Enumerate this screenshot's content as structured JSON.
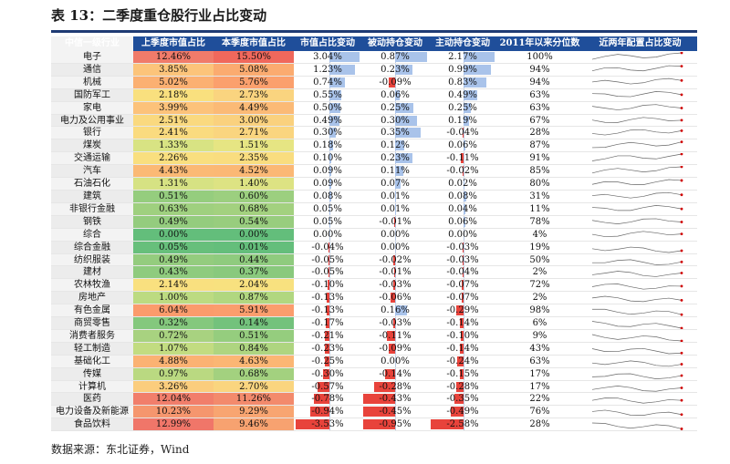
{
  "title": "表 13：二季度重仓股行业占比变动",
  "source": "数据来源：东北证券，Wind",
  "headers": [
    "中信一级行业",
    "上季度市值占比",
    "本季度市值占比",
    "市值占比变动",
    "被动持仓变动",
    "主动持仓变动",
    "2011年以来分位数",
    "近两年配置占比变动"
  ],
  "colors": {
    "header_bg": "#1f4e9a",
    "bar_positive": "#a9c3ea",
    "bar_negative": "#e8433b",
    "spark_line": "#666666",
    "spark_dot": "#d00000"
  },
  "rows": [
    {
      "industry": "电子",
      "prev": "12.46%",
      "curr": "15.50%",
      "chg": "3.04%",
      "passive": "0.87%",
      "active": "2.17%",
      "pct": "100%",
      "prev_color": "#f07b6a",
      "curr_color": "#f0685c",
      "chg_v": 3.04,
      "passive_v": 0.87,
      "active_v": 2.17
    },
    {
      "industry": "通信",
      "prev": "3.85%",
      "curr": "5.08%",
      "chg": "1.23%",
      "passive": "0.23%",
      "active": "0.99%",
      "pct": "94%",
      "prev_color": "#fcc47a",
      "curr_color": "#fbab70",
      "chg_v": 1.23,
      "passive_v": 0.23,
      "active_v": 0.99
    },
    {
      "industry": "机械",
      "prev": "5.02%",
      "curr": "5.76%",
      "chg": "0.74%",
      "passive": "-0.09%",
      "active": "0.83%",
      "pct": "94%",
      "prev_color": "#fbb072",
      "curr_color": "#fba06d",
      "chg_v": 0.74,
      "passive_v": -0.09,
      "active_v": 0.83
    },
    {
      "industry": "国防军工",
      "prev": "2.18%",
      "curr": "2.73%",
      "chg": "0.55%",
      "passive": "0.06%",
      "active": "0.49%",
      "pct": "63%",
      "prev_color": "#f9e07e",
      "curr_color": "#fad47f",
      "chg_v": 0.55,
      "passive_v": 0.06,
      "active_v": 0.49
    },
    {
      "industry": "家电",
      "prev": "3.99%",
      "curr": "4.49%",
      "chg": "0.50%",
      "passive": "0.25%",
      "active": "0.25%",
      "pct": "63%",
      "prev_color": "#fcc27a",
      "curr_color": "#fbba76",
      "chg_v": 0.5,
      "passive_v": 0.25,
      "active_v": 0.25
    },
    {
      "industry": "电力及公用事业",
      "prev": "2.51%",
      "curr": "3.00%",
      "chg": "0.49%",
      "passive": "0.30%",
      "active": "0.19%",
      "pct": "67%",
      "prev_color": "#fad97f",
      "curr_color": "#fad17e",
      "chg_v": 0.49,
      "passive_v": 0.3,
      "active_v": 0.19
    },
    {
      "industry": "银行",
      "prev": "2.41%",
      "curr": "2.71%",
      "chg": "0.30%",
      "passive": "0.35%",
      "active": "-0.04%",
      "pct": "28%",
      "prev_color": "#fadb7f",
      "curr_color": "#fad57f",
      "chg_v": 0.3,
      "passive_v": 0.35,
      "active_v": -0.04
    },
    {
      "industry": "煤炭",
      "prev": "1.33%",
      "curr": "1.51%",
      "chg": "0.18%",
      "passive": "0.12%",
      "active": "0.06%",
      "pct": "87%",
      "prev_color": "#d8e383",
      "curr_color": "#e6e583",
      "chg_v": 0.18,
      "passive_v": 0.12,
      "active_v": 0.06
    },
    {
      "industry": "交通运输",
      "prev": "2.26%",
      "curr": "2.35%",
      "chg": "0.10%",
      "passive": "0.23%",
      "active": "-0.11%",
      "pct": "91%",
      "prev_color": "#f9df7f",
      "curr_color": "#f9dd7f",
      "chg_v": 0.1,
      "passive_v": 0.23,
      "active_v": -0.11
    },
    {
      "industry": "汽车",
      "prev": "4.43%",
      "curr": "4.52%",
      "chg": "0.09%",
      "passive": "0.11%",
      "active": "-0.02%",
      "pct": "85%",
      "prev_color": "#fbb975",
      "curr_color": "#fbb875",
      "chg_v": 0.09,
      "passive_v": 0.11,
      "active_v": -0.02
    },
    {
      "industry": "石油石化",
      "prev": "1.31%",
      "curr": "1.40%",
      "chg": "0.09%",
      "passive": "0.07%",
      "active": "0.02%",
      "pct": "80%",
      "prev_color": "#d6e283",
      "curr_color": "#dde383",
      "chg_v": 0.09,
      "passive_v": 0.07,
      "active_v": 0.02
    },
    {
      "industry": "建筑",
      "prev": "0.51%",
      "curr": "0.60%",
      "chg": "0.08%",
      "passive": "0.01%",
      "active": "0.08%",
      "pct": "31%",
      "prev_color": "#95cd7e",
      "curr_color": "#9ccf7f",
      "chg_v": 0.08,
      "passive_v": 0.01,
      "active_v": 0.08
    },
    {
      "industry": "非银行金融",
      "prev": "0.63%",
      "curr": "0.68%",
      "chg": "0.05%",
      "passive": "0.01%",
      "active": "0.04%",
      "pct": "11%",
      "prev_color": "#9fd07f",
      "curr_color": "#a3d17f",
      "chg_v": 0.05,
      "passive_v": 0.01,
      "active_v": 0.04
    },
    {
      "industry": "钢铁",
      "prev": "0.49%",
      "curr": "0.54%",
      "chg": "0.05%",
      "passive": "-0.01%",
      "active": "0.06%",
      "pct": "78%",
      "prev_color": "#94cc7e",
      "curr_color": "#98cd7e",
      "chg_v": 0.05,
      "passive_v": -0.01,
      "active_v": 0.06
    },
    {
      "industry": "综合",
      "prev": "0.00%",
      "curr": "0.00%",
      "chg": "0.00%",
      "passive": "0.00%",
      "active": "0.00%",
      "pct": "4%",
      "prev_color": "#63be7b",
      "curr_color": "#63be7b",
      "chg_v": 0.0,
      "passive_v": 0.0,
      "active_v": 0.0
    },
    {
      "industry": "综合金融",
      "prev": "0.05%",
      "curr": "0.01%",
      "chg": "-0.04%",
      "passive": "0.00%",
      "active": "-0.03%",
      "pct": "19%",
      "prev_color": "#67bf7b",
      "curr_color": "#64be7b",
      "chg_v": -0.04,
      "passive_v": 0.0,
      "active_v": -0.03
    },
    {
      "industry": "纺织服装",
      "prev": "0.49%",
      "curr": "0.44%",
      "chg": "-0.05%",
      "passive": "-0.02%",
      "active": "-0.03%",
      "pct": "50%",
      "prev_color": "#94cc7e",
      "curr_color": "#8fcb7e",
      "chg_v": -0.05,
      "passive_v": -0.02,
      "active_v": -0.03
    },
    {
      "industry": "建材",
      "prev": "0.43%",
      "curr": "0.37%",
      "chg": "-0.05%",
      "passive": "-0.01%",
      "active": "-0.04%",
      "pct": "2%",
      "prev_color": "#8fcb7e",
      "curr_color": "#89c97d",
      "chg_v": -0.05,
      "passive_v": -0.01,
      "active_v": -0.04
    },
    {
      "industry": "农林牧渔",
      "prev": "2.14%",
      "curr": "2.04%",
      "chg": "-0.10%",
      "passive": "-0.03%",
      "active": "-0.07%",
      "pct": "72%",
      "prev_color": "#f9e07f",
      "curr_color": "#f8e17f",
      "chg_v": -0.1,
      "passive_v": -0.03,
      "active_v": -0.07
    },
    {
      "industry": "房地产",
      "prev": "1.00%",
      "curr": "0.87%",
      "chg": "-0.13%",
      "passive": "-0.06%",
      "active": "-0.07%",
      "pct": "2%",
      "prev_color": "#bcdb81",
      "curr_color": "#b1d780",
      "chg_v": -0.13,
      "passive_v": -0.06,
      "active_v": -0.07
    },
    {
      "industry": "有色金属",
      "prev": "6.04%",
      "curr": "5.91%",
      "chg": "-0.13%",
      "passive": "0.16%",
      "active": "-0.29%",
      "pct": "98%",
      "prev_color": "#fb9b6c",
      "curr_color": "#fb9d6d",
      "chg_v": -0.13,
      "passive_v": 0.16,
      "active_v": -0.29
    },
    {
      "industry": "商贸零售",
      "prev": "0.32%",
      "curr": "0.14%",
      "chg": "-0.17%",
      "passive": "-0.03%",
      "active": "-0.14%",
      "pct": "6%",
      "prev_color": "#84c87d",
      "curr_color": "#73c27c",
      "chg_v": -0.17,
      "passive_v": -0.03,
      "active_v": -0.14
    },
    {
      "industry": "消费者服务",
      "prev": "0.72%",
      "curr": "0.51%",
      "chg": "-0.21%",
      "passive": "-0.11%",
      "active": "-0.10%",
      "pct": "9%",
      "prev_color": "#a8d280",
      "curr_color": "#95cd7e",
      "chg_v": -0.21,
      "passive_v": -0.11,
      "active_v": -0.1
    },
    {
      "industry": "轻工制造",
      "prev": "1.07%",
      "curr": "0.84%",
      "chg": "-0.23%",
      "passive": "-0.09%",
      "active": "-0.14%",
      "pct": "43%",
      "prev_color": "#c2dc81",
      "curr_color": "#aed580",
      "chg_v": -0.23,
      "passive_v": -0.09,
      "active_v": -0.14
    },
    {
      "industry": "基础化工",
      "prev": "4.88%",
      "curr": "4.63%",
      "chg": "-0.25%",
      "passive": "0.00%",
      "active": "-0.24%",
      "pct": "63%",
      "prev_color": "#fbb273",
      "curr_color": "#fbb674",
      "chg_v": -0.25,
      "passive_v": 0.0,
      "active_v": -0.24
    },
    {
      "industry": "传媒",
      "prev": "0.97%",
      "curr": "0.68%",
      "chg": "-0.30%",
      "passive": "-0.14%",
      "active": "-0.15%",
      "pct": "17%",
      "prev_color": "#bad981",
      "curr_color": "#a3d17f",
      "chg_v": -0.3,
      "passive_v": -0.14,
      "active_v": -0.15
    },
    {
      "industry": "计算机",
      "prev": "3.26%",
      "curr": "2.70%",
      "chg": "-0.57%",
      "passive": "-0.28%",
      "active": "-0.28%",
      "pct": "17%",
      "prev_color": "#fbcd7d",
      "curr_color": "#fad57f",
      "chg_v": -0.57,
      "passive_v": -0.28,
      "active_v": -0.28
    },
    {
      "industry": "医药",
      "prev": "12.04%",
      "curr": "11.26%",
      "chg": "-0.78%",
      "passive": "-0.43%",
      "active": "-0.35%",
      "pct": "22%",
      "prev_color": "#f17e6b",
      "curr_color": "#f38a6c",
      "chg_v": -0.78,
      "passive_v": -0.43,
      "active_v": -0.35
    },
    {
      "industry": "电力设备及新能源",
      "prev": "10.23%",
      "curr": "9.29%",
      "chg": "-0.94%",
      "passive": "-0.45%",
      "active": "-0.49%",
      "pct": "76%",
      "prev_color": "#f5966e",
      "curr_color": "#f8a571",
      "chg_v": -0.94,
      "passive_v": -0.45,
      "active_v": -0.49
    },
    {
      "industry": "食品饮料",
      "prev": "12.99%",
      "curr": "9.46%",
      "chg": "-3.53%",
      "passive": "-0.95%",
      "active": "-2.58%",
      "pct": "28%",
      "prev_color": "#f07669",
      "curr_color": "#f7a270",
      "chg_v": -3.53,
      "passive_v": -0.95,
      "active_v": -2.58
    }
  ]
}
